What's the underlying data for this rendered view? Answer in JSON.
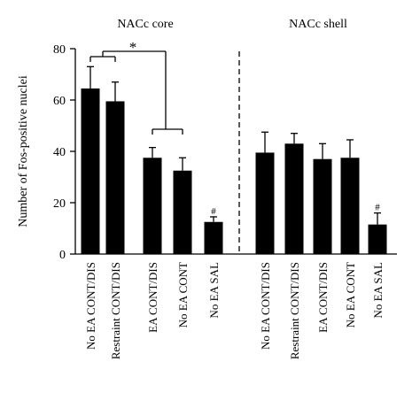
{
  "chart_data": {
    "type": "bar",
    "ylabel": "Number of Fos-positive nuclei",
    "ylim": [
      0,
      80
    ],
    "yticks": [
      0,
      20,
      40,
      60,
      80
    ],
    "grid": false,
    "panels": [
      {
        "title": "NACc core",
        "categories": [
          "No EA CONT/DIS",
          "Restraint CONT/DIS",
          "EA CONT/DIS",
          "No EA CONT",
          "No EA SAL"
        ],
        "values": [
          64.5,
          59.5,
          37.5,
          32.5,
          12.5
        ],
        "errors": [
          8.5,
          7.5,
          4,
          5,
          2
        ],
        "marks": [
          "",
          "",
          "",
          "",
          "#"
        ]
      },
      {
        "title": "NACc shell",
        "categories": [
          "No EA CONT/DIS",
          "Restraint CONT/DIS",
          "EA CONT/DIS",
          "No EA CONT",
          "No EA SAL"
        ],
        "values": [
          39.5,
          43,
          37,
          37.5,
          11.5
        ],
        "errors": [
          8,
          4,
          6,
          7,
          4.5
        ],
        "marks": [
          "",
          "",
          "",
          "",
          "#"
        ]
      }
    ],
    "significance_label": "*",
    "colors": {
      "bar": "#000000",
      "axis": "#000000"
    }
  }
}
